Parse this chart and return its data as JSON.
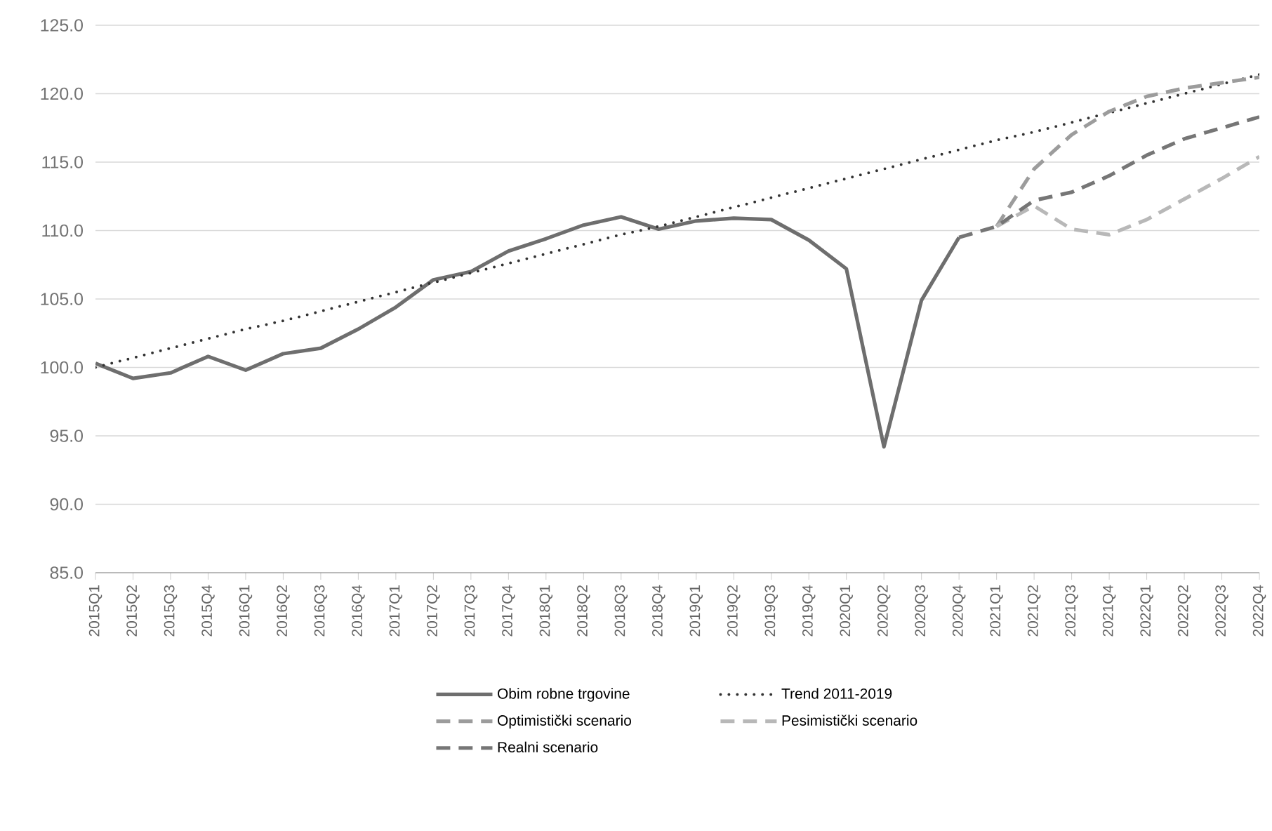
{
  "chart_data": {
    "type": "line",
    "categories": [
      "2015Q1",
      "2015Q2",
      "2015Q3",
      "2015Q4",
      "2016Q1",
      "2016Q2",
      "2016Q3",
      "2016Q4",
      "2017Q1",
      "2017Q2",
      "2017Q3",
      "2017Q4",
      "2018Q1",
      "2018Q2",
      "2018Q3",
      "2018Q4",
      "2019Q1",
      "2019Q2",
      "2019Q3",
      "2019Q4",
      "2020Q1",
      "2020Q2",
      "2020Q3",
      "2020Q4",
      "2021Q1",
      "2021Q2",
      "2021Q3",
      "2021Q4",
      "2022Q1",
      "2022Q2",
      "2022Q3",
      "2022Q4"
    ],
    "series": [
      {
        "name": "Obim robne trgovine",
        "color": "#6e6e6e",
        "line_style": "solid",
        "values": [
          100.3,
          99.2,
          99.6,
          100.8,
          99.8,
          101.0,
          101.4,
          102.8,
          104.4,
          106.4,
          107.0,
          108.5,
          109.4,
          110.4,
          111.0,
          110.1,
          110.7,
          110.9,
          110.8,
          109.3,
          107.2,
          94.2,
          104.9,
          109.5,
          null,
          null,
          null,
          null,
          null,
          null,
          null,
          null
        ]
      },
      {
        "name": "Trend 2011-2019",
        "color": "#333333",
        "line_style": "dotted",
        "values": [
          100.0,
          100.7,
          101.4,
          102.1,
          102.8,
          103.4,
          104.1,
          104.8,
          105.5,
          106.2,
          106.9,
          107.6,
          108.3,
          109.0,
          109.7,
          110.3,
          111.0,
          111.7,
          112.4,
          113.1,
          113.8,
          114.5,
          115.2,
          115.9,
          116.6,
          117.2,
          117.9,
          118.6,
          119.3,
          120.0,
          120.7,
          121.4
        ]
      },
      {
        "name": "Optimistički scenario",
        "color": "#9c9c9c",
        "line_style": "dashed",
        "values": [
          null,
          null,
          null,
          null,
          null,
          null,
          null,
          null,
          null,
          null,
          null,
          null,
          null,
          null,
          null,
          null,
          null,
          null,
          null,
          null,
          null,
          null,
          null,
          null,
          110.3,
          114.5,
          117.0,
          118.7,
          119.8,
          120.4,
          120.8,
          121.2
        ]
      },
      {
        "name": "Pesimistički scenario",
        "color": "#b8b8b8",
        "line_style": "dashed",
        "values": [
          null,
          null,
          null,
          null,
          null,
          null,
          null,
          null,
          null,
          null,
          null,
          null,
          null,
          null,
          null,
          null,
          null,
          null,
          null,
          null,
          null,
          null,
          null,
          null,
          110.3,
          111.8,
          110.1,
          109.7,
          110.8,
          112.3,
          113.8,
          115.4
        ]
      },
      {
        "name": "Realni scenario",
        "color": "#767676",
        "line_style": "dashed",
        "values": [
          null,
          null,
          null,
          null,
          null,
          null,
          null,
          null,
          null,
          null,
          null,
          null,
          null,
          null,
          null,
          null,
          null,
          null,
          null,
          null,
          null,
          null,
          null,
          109.5,
          110.3,
          112.2,
          112.8,
          114.0,
          115.5,
          116.7,
          117.5,
          118.3
        ]
      }
    ],
    "ylim": [
      85,
      125
    ],
    "yticks": [
      {
        "value": 85,
        "label": "85.0"
      },
      {
        "value": 90,
        "label": "90.0"
      },
      {
        "value": 95,
        "label": "95.0"
      },
      {
        "value": 100,
        "label": "100.0"
      },
      {
        "value": 105,
        "label": "105.0"
      },
      {
        "value": 110,
        "label": "110.0"
      },
      {
        "value": 115,
        "label": "115.0"
      },
      {
        "value": 120,
        "label": "120.0"
      },
      {
        "value": 125,
        "label": "125.0"
      }
    ],
    "grid": "y",
    "legend": "bottom",
    "marker": "none"
  }
}
